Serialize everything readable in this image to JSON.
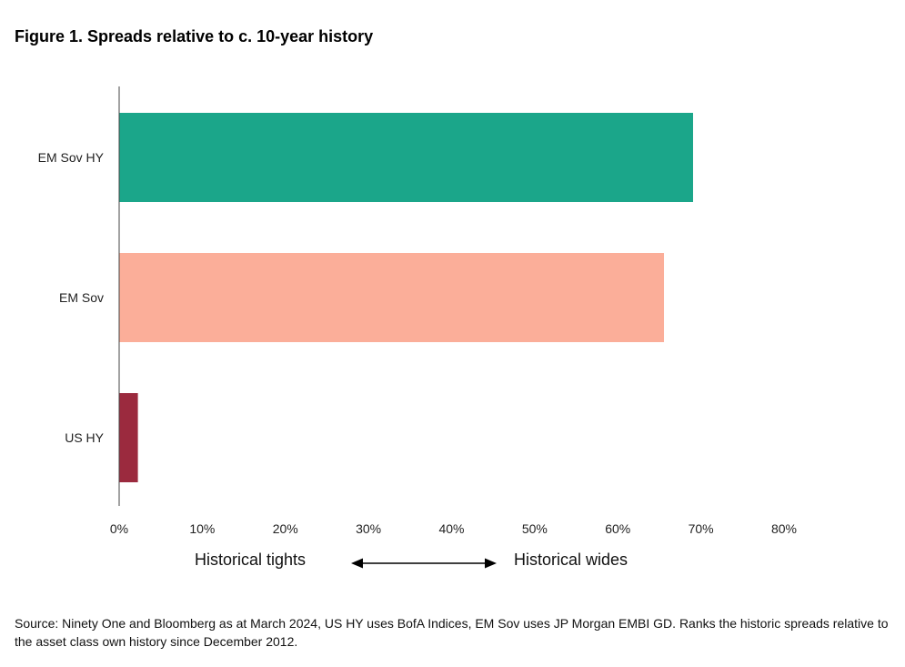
{
  "title": "Figure 1. Spreads relative to c. 10-year history",
  "chart_data": {
    "type": "bar",
    "orientation": "horizontal",
    "categories": [
      "EM Sov HY",
      "EM Sov",
      "US HY"
    ],
    "values": [
      0.69,
      0.655,
      0.022
    ],
    "colors": [
      "#1ba68a",
      "#fbae99",
      "#9b2a3e"
    ],
    "xlim": [
      0,
      0.8
    ],
    "xticks": [
      "0%",
      "10%",
      "20%",
      "30%",
      "40%",
      "50%",
      "60%",
      "70%",
      "80%"
    ],
    "xlabel": "",
    "ylabel": "",
    "grid": false,
    "legend": "none"
  },
  "annotation": {
    "left_label": "Historical tights",
    "right_label": "Historical wides",
    "arrow_icon": "double-arrow-icon"
  },
  "source": "Source: Ninety One and Bloomberg as at March 2024, US HY uses BofA Indices, EM Sov uses JP Morgan EMBI GD. Ranks the historic spreads relative to the asset class own history since December 2012."
}
